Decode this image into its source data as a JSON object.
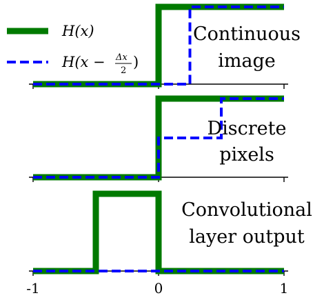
{
  "chart_data": [
    {
      "type": "line",
      "annotation": [
        "Continuous",
        "image"
      ],
      "xlim": [
        -1,
        1
      ],
      "series": [
        {
          "name": "H(x)",
          "color": "#007a00",
          "style": "solid",
          "x": [
            -1,
            0,
            0,
            1
          ],
          "y": [
            0,
            0,
            1,
            1
          ]
        },
        {
          "name": "H(x − Δx/2)",
          "color": "#0000ff",
          "style": "dashed",
          "x": [
            -1,
            0.25,
            0.25,
            1
          ],
          "y": [
            0,
            0,
            1,
            1
          ]
        }
      ]
    },
    {
      "type": "line",
      "annotation": [
        "Discrete",
        "pixels"
      ],
      "xlim": [
        -1,
        1
      ],
      "series": [
        {
          "name": "H(x)",
          "color": "#007a00",
          "style": "solid",
          "x": [
            -1,
            0,
            0,
            1
          ],
          "y": [
            0,
            0,
            1,
            1
          ]
        },
        {
          "name": "H(x − Δx/2)",
          "color": "#0000ff",
          "style": "dashed",
          "x": [
            -1,
            0,
            0,
            0.5,
            0.5,
            1
          ],
          "y": [
            0,
            0,
            0.5,
            0.5,
            1,
            1
          ]
        }
      ]
    },
    {
      "type": "line",
      "annotation": [
        "Convolutional",
        "layer output"
      ],
      "xlim": [
        -1,
        1
      ],
      "xticks": [
        "-1",
        "0",
        "1"
      ],
      "series": [
        {
          "name": "H(x)",
          "color": "#007a00",
          "style": "solid",
          "x": [
            -1,
            -0.5,
            -0.5,
            0,
            0,
            1
          ],
          "y": [
            0,
            0,
            1,
            1,
            0,
            0
          ]
        },
        {
          "name": "H(x − Δx/2)",
          "color": "#0000ff",
          "style": "dashed",
          "x": [
            -1,
            1
          ],
          "y": [
            0,
            0
          ]
        }
      ]
    }
  ],
  "legend": {
    "placement": "top-left",
    "items": [
      {
        "symbol": "H",
        "open": "(",
        "arg": "x",
        "close": ")",
        "color": "#007a00",
        "style": "solid"
      },
      {
        "symbol": "H",
        "open": "(",
        "arg": "x",
        "minus": " − ",
        "frac_num": "Δx",
        "frac_den": "2",
        "close": ")",
        "color": "#0000ff",
        "style": "dashed"
      }
    ]
  }
}
